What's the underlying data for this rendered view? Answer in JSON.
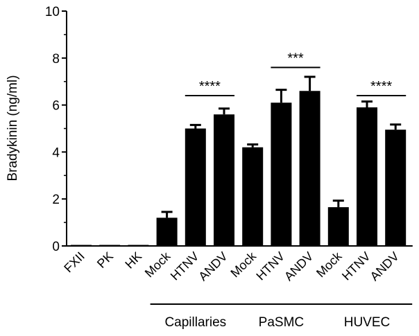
{
  "chart_data": {
    "type": "bar",
    "ylabel": "Bradykinin (ng/ml)",
    "ylim": [
      0,
      10
    ],
    "yticks": [
      0,
      2,
      4,
      6,
      8,
      10
    ],
    "grid": false,
    "bar_color": "#000000",
    "categories": [
      "FXII",
      "PK",
      "HK",
      "Mock",
      "HTNV",
      "ANDV",
      "Mock",
      "HTNV",
      "ANDV",
      "Mock",
      "HTNV",
      "ANDV"
    ],
    "values": [
      0.02,
      0.02,
      0.02,
      1.2,
      5.0,
      5.6,
      4.2,
      6.1,
      6.6,
      1.65,
      5.9,
      4.95
    ],
    "errors": [
      0,
      0,
      0,
      0.25,
      0.15,
      0.25,
      0.12,
      0.55,
      0.6,
      0.28,
      0.25,
      0.22
    ],
    "groups": [
      {
        "label": "Capillaries",
        "start": 3,
        "end": 5
      },
      {
        "label": "PaSMC",
        "start": 6,
        "end": 8
      },
      {
        "label": "HUVEC",
        "start": 9,
        "end": 11
      }
    ],
    "significance": [
      {
        "label": "****",
        "start": 4,
        "end": 5,
        "y": 6.4
      },
      {
        "label": "***",
        "start": 7,
        "end": 8,
        "y": 7.6
      },
      {
        "label": "****",
        "start": 10,
        "end": 11,
        "y": 6.4
      }
    ]
  }
}
